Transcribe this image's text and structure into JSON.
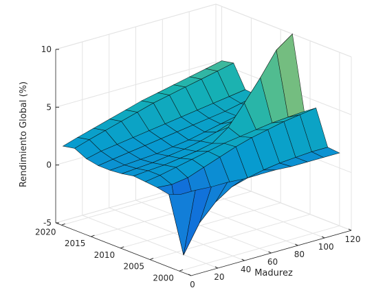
{
  "chart_data": {
    "type": "surface",
    "title": "",
    "xlabel": "Madurez",
    "ylabel": "",
    "zlabel": "Rendimiento Global (%)",
    "x_ticks": [
      "0",
      "20",
      "40",
      "60",
      "80",
      "100",
      "120"
    ],
    "y_ticks": [
      "2000",
      "2005",
      "2010",
      "2015",
      "2020"
    ],
    "z_ticks": [
      "-5",
      "0",
      "5",
      "10"
    ],
    "xlim": [
      0,
      120
    ],
    "ylim": [
      1998,
      2021
    ],
    "zlim": [
      -5,
      10
    ],
    "grid": true,
    "colormap": "parula",
    "x": [
      1,
      12,
      24,
      36,
      48,
      60,
      72,
      84,
      96,
      108,
      120
    ],
    "y": [
      2000,
      2002,
      2004,
      2006,
      2008,
      2010,
      2012,
      2014,
      2016,
      2018,
      2020
    ],
    "z": [
      [
        1.6,
        1.6,
        1.5,
        1.5,
        1.4,
        1.4,
        1.4,
        1.3,
        1.3,
        1.3,
        1.3
      ],
      [
        1.2,
        -4.4,
        -2.0,
        -0.6,
        0.3,
        0.7,
        1.0,
        1.2,
        1.3,
        1.4,
        1.4
      ],
      [
        1.4,
        1.3,
        1.5,
        2.0,
        2.5,
        3.0,
        3.4,
        3.7,
        4.0,
        4.2,
        4.4
      ],
      [
        1.5,
        1.7,
        2.0,
        2.3,
        2.6,
        2.9,
        3.1,
        3.3,
        3.5,
        3.6,
        3.7
      ],
      [
        1.6,
        1.7,
        1.8,
        2.0,
        2.2,
        2.5,
        3.5,
        5.2,
        7.0,
        9.0,
        10.0
      ],
      [
        1.4,
        1.5,
        1.6,
        1.8,
        2.0,
        2.3,
        2.7,
        3.2,
        3.8,
        4.6,
        5.5
      ],
      [
        1.3,
        1.4,
        1.5,
        1.6,
        1.8,
        2.0,
        2.3,
        2.6,
        2.9,
        3.3,
        3.8
      ],
      [
        1.3,
        1.5,
        1.7,
        1.9,
        2.1,
        2.3,
        2.5,
        2.7,
        2.9,
        3.2,
        3.5
      ],
      [
        1.5,
        1.8,
        2.0,
        2.2,
        2.4,
        2.6,
        2.8,
        3.0,
        3.2,
        3.4,
        3.6
      ],
      [
        2.0,
        2.4,
        2.8,
        3.2,
        3.6,
        4.0,
        4.3,
        4.6,
        4.9,
        5.2,
        5.5
      ],
      [
        1.8,
        2.2,
        2.6,
        3.0,
        3.4,
        3.8,
        4.1,
        4.4,
        4.7,
        5.0,
        5.3
      ]
    ]
  }
}
